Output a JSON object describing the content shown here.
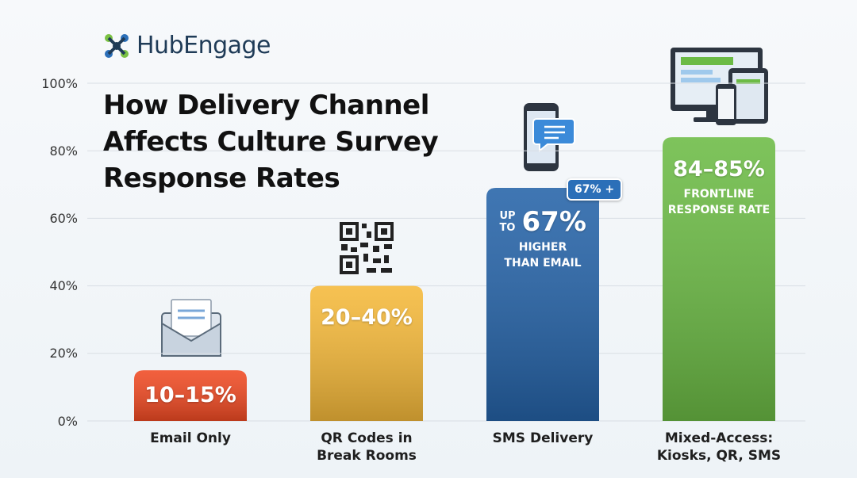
{
  "brand": "HubEngage",
  "chart_data": {
    "type": "bar",
    "title": "How Delivery Channel\nAffects Culture Survey\nResponse Rates",
    "categories": [
      "Email Only",
      "QR Codes in\nBreak Rooms",
      "SMS Delivery",
      "Mixed-Access:\nKiosks, QR, SMS"
    ],
    "values": [
      15,
      40,
      69,
      84
    ],
    "colors": [
      "#f04a23",
      "#f5b93a",
      "#2563a8",
      "#6cbb45"
    ],
    "annotations": [
      {
        "main": "10–15%"
      },
      {
        "main": "20–40%"
      },
      {
        "prefix": "UP\nTO",
        "main": "67%",
        "note": "HIGHER\nTHAN EMAIL",
        "badge": "67% +"
      },
      {
        "main": "84–85%",
        "note": "FRONTLINE\nRESPONSE RATE"
      }
    ],
    "ylim": [
      0,
      100
    ],
    "yticks": [
      {
        "value": 0,
        "label": "0%"
      },
      {
        "value": 20,
        "label": "20%"
      },
      {
        "value": 40,
        "label": "40%"
      },
      {
        "value": 60,
        "label": "60%"
      },
      {
        "value": 80,
        "label": "80%"
      },
      {
        "value": 100,
        "label": "100%"
      }
    ],
    "grid": true
  }
}
